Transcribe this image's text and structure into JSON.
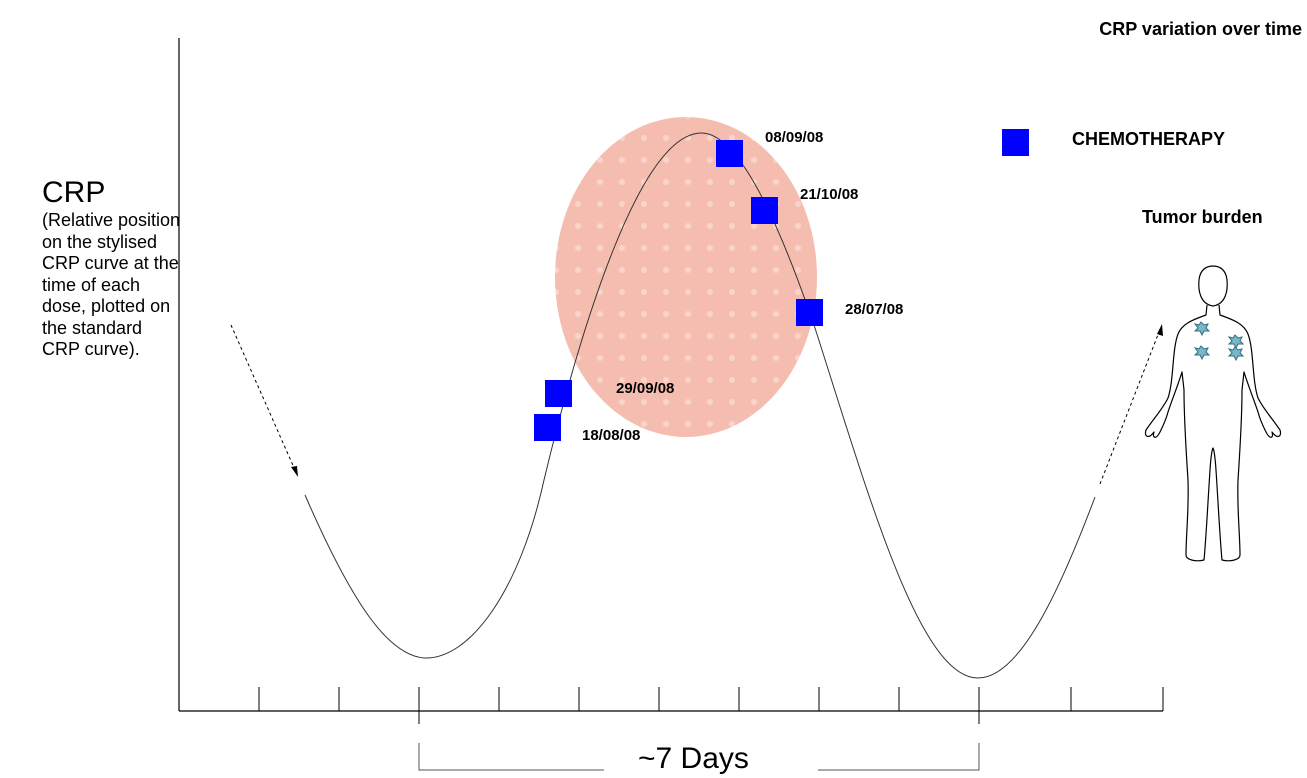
{
  "title": "CRP variation over time",
  "y_axis": {
    "label": "CRP",
    "description": "(Relative position on the stylised CRP curve at the time of each dose, plotted on the standard CRP curve)."
  },
  "legend": {
    "marker_label": "CHEMOTHERAPY",
    "marker_color": "#0000ff"
  },
  "tumor_label": "Tumor burden",
  "duration_label": "~7 Days",
  "colors": {
    "curve": "#333333",
    "highlight": "#f5bdb0",
    "marker": "#0000ff",
    "tumor": "#7ab8c8"
  },
  "doses": [
    {
      "date": "08/09/08"
    },
    {
      "date": "21/10/08"
    },
    {
      "date": "28/07/08"
    },
    {
      "date": "29/09/08"
    },
    {
      "date": "18/08/08"
    }
  ]
}
